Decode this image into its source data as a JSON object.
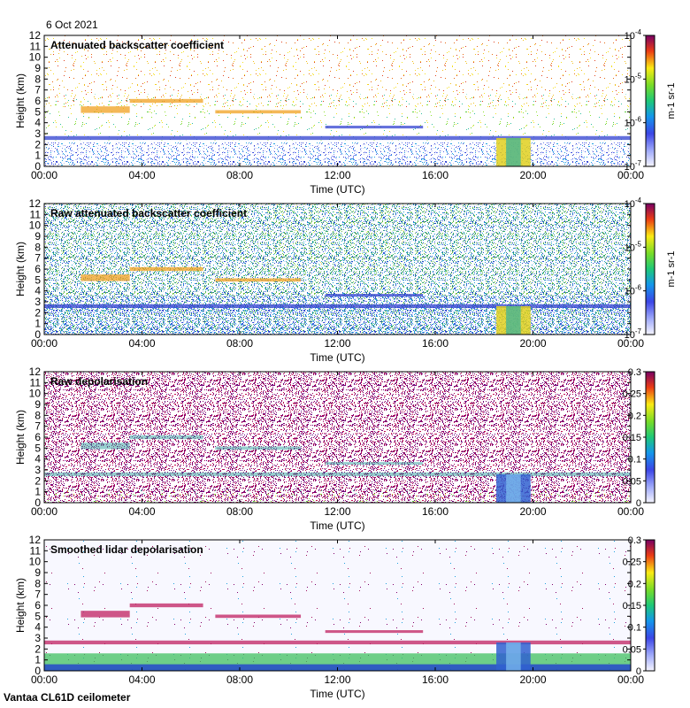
{
  "date": "6 Oct 2021",
  "footer": "Vantaa CL61D ceilometer",
  "chart_data": [
    {
      "type": "heatmap",
      "title": "Attenuated backscatter coefficient",
      "xlabel": "Time (UTC)",
      "ylabel": "Height (km)",
      "x_ticks": [
        "00:00",
        "04:00",
        "08:00",
        "12:00",
        "16:00",
        "20:00",
        "00:00"
      ],
      "xlim": [
        0,
        24
      ],
      "ylim": [
        0,
        12
      ],
      "y_ticks": [
        0,
        1,
        2,
        3,
        4,
        5,
        6,
        7,
        8,
        9,
        10,
        11,
        12
      ],
      "colorbar": {
        "scale": "log",
        "range": [
          1e-07,
          0.0001
        ],
        "ticks": [
          {
            "base": "10",
            "exp": "-7"
          },
          {
            "base": "10",
            "exp": "-6"
          },
          {
            "base": "10",
            "exp": "-5"
          },
          {
            "base": "10",
            "exp": "-4"
          }
        ],
        "unit_label": "m-1 sr-1"
      }
    },
    {
      "type": "heatmap",
      "title": "Raw attenuated backscatter coefficient",
      "xlabel": "Time (UTC)",
      "ylabel": "Height (km)",
      "x_ticks": [
        "00:00",
        "04:00",
        "08:00",
        "12:00",
        "16:00",
        "20:00",
        "00:00"
      ],
      "xlim": [
        0,
        24
      ],
      "ylim": [
        0,
        12
      ],
      "y_ticks": [
        0,
        1,
        2,
        3,
        4,
        5,
        6,
        7,
        8,
        9,
        10,
        11,
        12
      ],
      "colorbar": {
        "scale": "log",
        "range": [
          1e-07,
          0.0001
        ],
        "ticks": [
          {
            "base": "10",
            "exp": "-7"
          },
          {
            "base": "10",
            "exp": "-6"
          },
          {
            "base": "10",
            "exp": "-5"
          },
          {
            "base": "10",
            "exp": "-4"
          }
        ],
        "unit_label": "m-1 sr-1"
      }
    },
    {
      "type": "heatmap",
      "title": "Raw depolarisation",
      "xlabel": "Time (UTC)",
      "ylabel": "Height (km)",
      "x_ticks": [
        "00:00",
        "04:00",
        "08:00",
        "12:00",
        "16:00",
        "20:00",
        "00:00"
      ],
      "xlim": [
        0,
        24
      ],
      "ylim": [
        0,
        12
      ],
      "y_ticks": [
        0,
        1,
        2,
        3,
        4,
        5,
        6,
        7,
        8,
        9,
        10,
        11,
        12
      ],
      "colorbar": {
        "scale": "linear",
        "range": [
          0,
          0.3
        ],
        "ticks": [
          "0",
          "0.05",
          "0.1",
          "0.15",
          "0.2",
          "0.25",
          "0.3"
        ],
        "unit_label": ""
      }
    },
    {
      "type": "heatmap",
      "title": "Smoothed lidar depolarisation",
      "xlabel": "Time (UTC)",
      "ylabel": "Height (km)",
      "x_ticks": [
        "00:00",
        "04:00",
        "08:00",
        "12:00",
        "16:00",
        "20:00",
        "00:00"
      ],
      "xlim": [
        0,
        24
      ],
      "ylim": [
        0,
        12
      ],
      "y_ticks": [
        0,
        1,
        2,
        3,
        4,
        5,
        6,
        7,
        8,
        9,
        10,
        11,
        12
      ],
      "colorbar": {
        "scale": "linear",
        "range": [
          0,
          0.3
        ],
        "ticks": [
          "0",
          "0.05",
          "0.1",
          "0.15",
          "0.2",
          "0.25",
          "0.3"
        ],
        "unit_label": ""
      }
    }
  ]
}
